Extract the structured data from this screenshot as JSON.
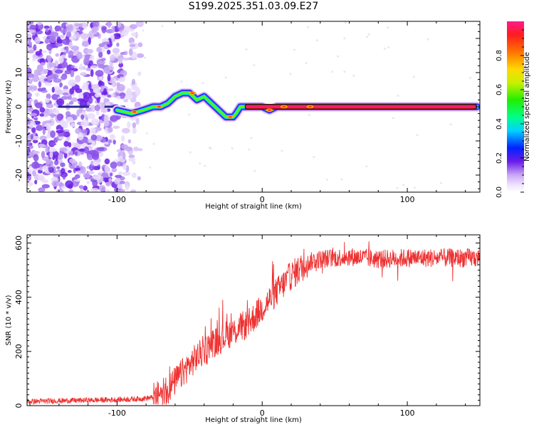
{
  "title": "S199.2025.351.03.09.E27",
  "chart_data": [
    {
      "type": "heatmap",
      "name": "spectrogram",
      "xlabel": "Height of straight line (km)",
      "ylabel": "Frequency (Hz)",
      "xlim": [
        -162,
        150
      ],
      "ylim": [
        -25,
        25
      ],
      "xticks": [
        -100,
        0,
        100
      ],
      "yticks": [
        -20,
        -10,
        0,
        10,
        20
      ],
      "frequency_ridge": {
        "x": [
          -100,
          -90,
          -82,
          -75,
          -70,
          -65,
          -60,
          -55,
          -50,
          -45,
          -40,
          -35,
          -30,
          -25,
          -20,
          -18,
          -15,
          -10,
          -5,
          0,
          5,
          10,
          20,
          40,
          60,
          100,
          148
        ],
        "y": [
          -1,
          -2,
          -1,
          0,
          0,
          1,
          3,
          4,
          4,
          2,
          3,
          1,
          -1,
          -3,
          -3,
          -2,
          0,
          0,
          0,
          0,
          -1,
          0,
          0,
          0,
          0,
          0,
          0
        ]
      },
      "colorbar": {
        "label": "Normalized spectral amplitude",
        "range": [
          0,
          1
        ],
        "ticks": [
          "0.0",
          "0.2",
          "0.4",
          "0.6",
          "0.8"
        ]
      }
    },
    {
      "type": "line",
      "name": "snr",
      "xlabel": "Height of straight line (km)",
      "ylabel": "SNR (10 * v/v)",
      "xlim": [
        -162,
        150
      ],
      "ylim": [
        0,
        630
      ],
      "xticks": [
        -100,
        0,
        100
      ],
      "yticks": [
        0,
        200,
        400,
        600
      ],
      "series": [
        {
          "name": "SNR",
          "color": "#ee3030",
          "x": [
            -162,
            -140,
            -120,
            -100,
            -85,
            -75,
            -70,
            -65,
            -60,
            -55,
            -50,
            -45,
            -40,
            -35,
            -30,
            -25,
            -20,
            -15,
            -10,
            -5,
            0,
            5,
            10,
            15,
            20,
            25,
            30,
            35,
            40,
            50,
            60,
            70,
            80,
            100,
            120,
            140,
            150
          ],
          "values": [
            15,
            18,
            20,
            22,
            25,
            30,
            40,
            60,
            90,
            120,
            150,
            180,
            200,
            230,
            240,
            260,
            270,
            290,
            300,
            330,
            360,
            390,
            420,
            450,
            480,
            500,
            520,
            535,
            540,
            545,
            550,
            545,
            540,
            545,
            545,
            545,
            545
          ]
        }
      ]
    }
  ]
}
